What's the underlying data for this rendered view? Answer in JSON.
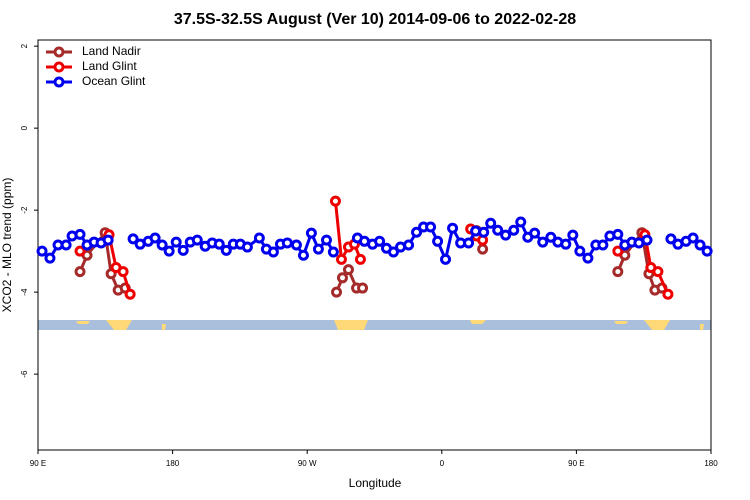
{
  "chart_data": {
    "type": "line",
    "title": "37.5S-32.5S August (Ver 10)   2014-09-06 to 2022-02-28",
    "xlabel": "Longitude",
    "ylabel": "XCO2 - MLO trend (ppm)",
    "xlim": [
      90,
      540
    ],
    "ylim": [
      -7.85,
      2.15
    ],
    "xticks": [
      {
        "value": 90,
        "label": "90 E"
      },
      180,
      {
        "value": 270,
        "label": "90 W"
      },
      {
        "value": 360,
        "label": "0"
      },
      {
        "value": 450,
        "label": "90 E"
      },
      {
        "value": 540,
        "label": "180"
      }
    ],
    "yticks": [
      -6,
      -4,
      -2,
      0,
      2
    ],
    "legend": "topleft",
    "series": [
      {
        "name": "Land Nadir",
        "color": "#a52a2a",
        "x": [
          118.1,
          122.8,
          134.9,
          138.9,
          143.6,
          148.3,
          200,
          289.6,
          293.6,
          297.6,
          303.0,
          307.0,
          350,
          383.3,
          387.3,
          450,
          477.7,
          482.4,
          493.8,
          498.5,
          502.5,
          507.2
        ],
        "values": [
          -3.5,
          -3.1,
          -2.55,
          -3.55,
          -3.95,
          -3.9,
          null,
          -4.0,
          -3.65,
          -3.45,
          -3.9,
          -3.9,
          null,
          -2.5,
          -2.95,
          null,
          -3.5,
          -3.1,
          -2.55,
          -3.55,
          -3.95,
          -3.9
        ]
      },
      {
        "name": "Land Glint",
        "color": "#ee0000",
        "x": [
          118.1,
          200,
          137.5,
          142.2,
          146.9,
          151.6,
          250,
          288.9,
          292.9,
          297.6,
          301.6,
          305.6,
          350,
          379.3,
          383.3,
          387.3,
          450,
          477.7,
          460,
          495.8,
          499.8,
          504.5,
          511.2
        ],
        "values": [
          -3.0,
          null,
          -2.6,
          -3.4,
          -3.5,
          -4.05,
          null,
          -1.78,
          -3.2,
          -2.9,
          -2.83,
          -3.2,
          null,
          -2.46,
          -2.63,
          -2.73,
          null,
          -3.0,
          null,
          -2.6,
          -3.4,
          -3.5,
          -4.05
        ]
      },
      {
        "name": "Ocean Glint",
        "color": "#0000ee",
        "x": [
          92.7,
          98.0,
          103.4,
          108.8,
          112.8,
          118.1,
          122.8,
          127.5,
          132.2,
          136.9,
          145,
          153.6,
          158.3,
          163.7,
          168.3,
          173.0,
          177.7,
          182.4,
          187.1,
          191.8,
          196.5,
          201.8,
          206.5,
          211.2,
          215.9,
          220.6,
          225.3,
          230.0,
          238.0,
          242.7,
          247.4,
          252.1,
          256.7,
          262.8,
          267.5,
          272.8,
          277.5,
          282.9,
          287.5,
          295,
          303.6,
          308.3,
          313.7,
          318.4,
          323.0,
          327.7,
          332.4,
          337.8,
          343.1,
          347.8,
          352.5,
          357.2,
          362.5,
          367.2,
          372.6,
          377.9,
          382.6,
          388.0,
          392.7,
          397.4,
          402.7,
          408.1,
          412.8,
          417.5,
          422.1,
          427.5,
          432.9,
          437.6,
          442.9,
          447.6,
          452.3,
          457.7,
          463.0,
          467.7,
          472.4,
          477.7,
          482.4,
          487.1,
          491.8,
          497.2,
          505,
          513.2,
          517.9,
          523.3,
          528.0,
          532.7,
          537.4
        ],
        "values": [
          -3.0,
          -3.17,
          -2.85,
          -2.85,
          -2.63,
          -2.59,
          -2.85,
          -2.78,
          -2.8,
          -2.73,
          null,
          -2.7,
          -2.83,
          -2.76,
          -2.68,
          -2.85,
          -3.0,
          -2.78,
          -2.98,
          -2.78,
          -2.73,
          -2.88,
          -2.8,
          -2.83,
          -2.98,
          -2.83,
          -2.83,
          -2.9,
          -2.68,
          -2.95,
          -3.02,
          -2.83,
          -2.8,
          -2.85,
          -3.1,
          -2.56,
          -2.95,
          -2.73,
          -3.02,
          null,
          -2.68,
          -2.76,
          -2.83,
          -2.76,
          -2.93,
          -3.02,
          -2.9,
          -2.85,
          -2.54,
          -2.41,
          -2.41,
          -2.76,
          -3.2,
          -2.44,
          -2.8,
          -2.8,
          -2.51,
          -2.54,
          -2.32,
          -2.49,
          -2.61,
          -2.49,
          -2.29,
          -2.66,
          -2.56,
          -2.78,
          -2.66,
          -2.78,
          -2.83,
          -2.61,
          -3.0,
          -3.17,
          -2.85,
          -2.85,
          -2.63,
          -2.59,
          -2.85,
          -2.78,
          -2.8,
          -2.73,
          null,
          -2.7,
          -2.83,
          -2.76,
          -2.68,
          -2.85,
          -3.0
        ]
      }
    ]
  }
}
